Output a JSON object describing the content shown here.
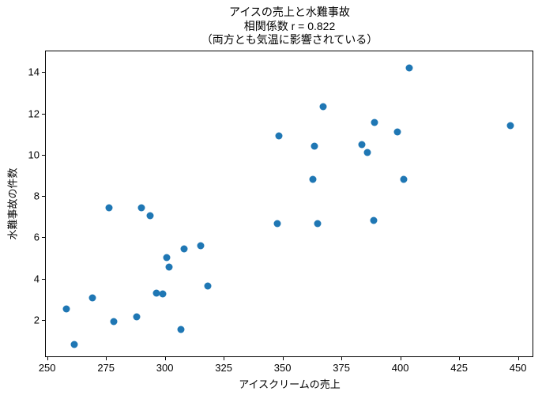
{
  "figure": {
    "background": "#ffffff",
    "correlation_r": 0.822
  },
  "chart_data": {
    "type": "scatter",
    "title": "アイスの売上と水難事故\n相関係数 r = 0.822\n（両方とも気温に影響されている）",
    "title_lines": [
      "アイスの売上と水難事故",
      "相関係数 r = 0.822",
      "（両方とも気温に影響されている）"
    ],
    "xlabel": "アイスクリームの売上",
    "ylabel": "水難事故の件数",
    "marker_color": "#1f77b4",
    "axis_color": "#000000",
    "grid": false,
    "legend": "none",
    "xlim": [
      249.1,
      456.5
    ],
    "ylim": [
      0.2,
      15.05
    ],
    "xticks": [
      250,
      275,
      300,
      325,
      350,
      375,
      400,
      425,
      450
    ],
    "yticks": [
      2,
      4,
      6,
      8,
      10,
      12,
      14
    ],
    "points": [
      [
        258.2,
        2.55
      ],
      [
        261.4,
        0.8
      ],
      [
        269.2,
        3.07
      ],
      [
        276.3,
        7.45
      ],
      [
        278.4,
        1.93
      ],
      [
        288.1,
        2.15
      ],
      [
        290.1,
        7.43
      ],
      [
        293.6,
        7.05
      ],
      [
        296.5,
        3.3
      ],
      [
        299.2,
        3.28
      ],
      [
        300.8,
        5.03
      ],
      [
        301.7,
        4.55
      ],
      [
        306.8,
        1.55
      ],
      [
        308.2,
        5.43
      ],
      [
        315.1,
        5.58
      ],
      [
        318.4,
        3.65
      ],
      [
        347.6,
        6.65
      ],
      [
        348.5,
        10.92
      ],
      [
        362.9,
        8.83
      ],
      [
        363.4,
        10.43
      ],
      [
        364.9,
        6.65
      ],
      [
        367.1,
        12.35
      ],
      [
        383.8,
        10.5
      ],
      [
        386.1,
        10.12
      ],
      [
        388.6,
        6.82
      ],
      [
        389.1,
        11.55
      ],
      [
        398.7,
        11.1
      ],
      [
        401.3,
        8.83
      ],
      [
        403.9,
        14.22
      ],
      [
        446.8,
        11.4
      ]
    ]
  }
}
